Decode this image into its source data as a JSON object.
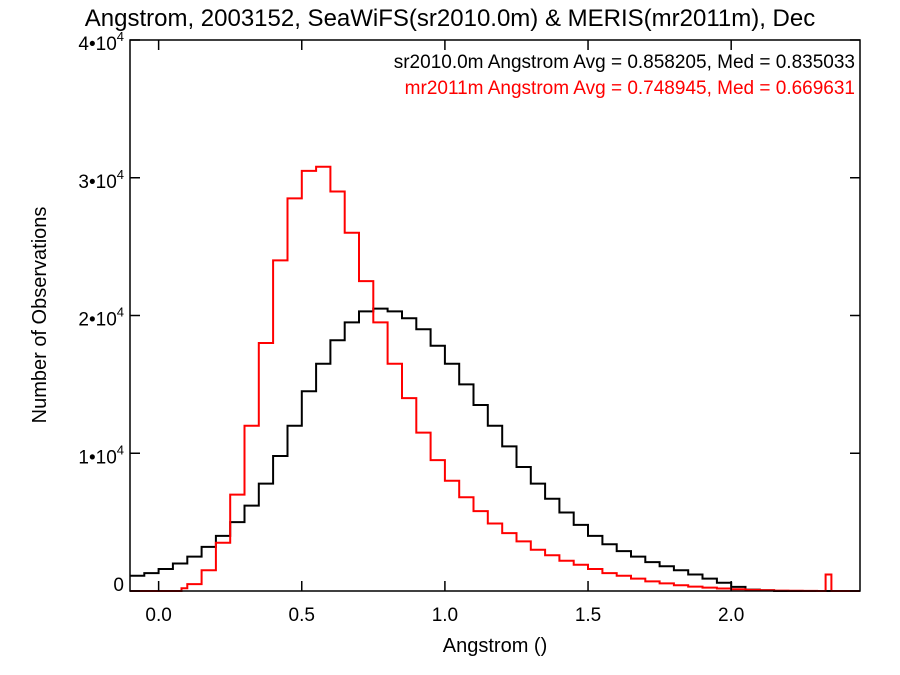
{
  "chart_data": {
    "type": "line",
    "title": "Angstrom, 2003152, SeaWiFS(sr2010.0m) & MERIS(mr2011m), Dec",
    "xlabel": "Angstrom ()",
    "ylabel": "Number of Observations",
    "xlim": [
      -0.1,
      2.45
    ],
    "ylim": [
      0,
      40000
    ],
    "xticks": [
      {
        "value": 0.0,
        "label": "0.0"
      },
      {
        "value": 0.5,
        "label": "0.5"
      },
      {
        "value": 1.0,
        "label": "1.0"
      },
      {
        "value": 1.5,
        "label": "1.5"
      },
      {
        "value": 2.0,
        "label": "2.0"
      }
    ],
    "yticks": [
      {
        "value": 0,
        "label": "0",
        "sup": ""
      },
      {
        "value": 10000,
        "label": "1•10",
        "sup": "4"
      },
      {
        "value": 20000,
        "label": "2•10",
        "sup": "4"
      },
      {
        "value": 30000,
        "label": "3•10",
        "sup": "4"
      },
      {
        "value": 40000,
        "label": "4•10",
        "sup": "4"
      }
    ],
    "grid": false,
    "legend_position": "top-right",
    "series": [
      {
        "name": "sr2010.0m Angstrom Avg = 0.858205, Med = 0.835033",
        "color": "#000000",
        "x": [
          -0.1,
          -0.05,
          0.0,
          0.05,
          0.1,
          0.15,
          0.2,
          0.25,
          0.3,
          0.35,
          0.4,
          0.45,
          0.5,
          0.55,
          0.6,
          0.65,
          0.7,
          0.75,
          0.8,
          0.85,
          0.9,
          0.95,
          1.0,
          1.05,
          1.1,
          1.15,
          1.2,
          1.25,
          1.3,
          1.35,
          1.4,
          1.45,
          1.5,
          1.55,
          1.6,
          1.65,
          1.7,
          1.75,
          1.8,
          1.85,
          1.9,
          1.95,
          2.0,
          2.05,
          2.1,
          2.15,
          2.2,
          2.25,
          2.3,
          2.35
        ],
        "y": [
          1100,
          1300,
          1600,
          2000,
          2500,
          3200,
          4000,
          5000,
          6200,
          7800,
          9800,
          12000,
          14500,
          16500,
          18200,
          19500,
          20300,
          20500,
          20300,
          19800,
          19000,
          17800,
          16500,
          15000,
          13500,
          12000,
          10500,
          9000,
          7800,
          6700,
          5700,
          4800,
          4000,
          3400,
          2900,
          2500,
          2100,
          1800,
          1500,
          1200,
          900,
          600,
          300,
          100,
          50,
          0,
          0,
          0,
          0,
          0
        ]
      },
      {
        "name": "mr2011m Angstrom Avg = 0.748945, Med = 0.669631",
        "color": "#ff0000",
        "x": [
          -0.1,
          0.0,
          0.05,
          0.08,
          0.1,
          0.15,
          0.2,
          0.25,
          0.3,
          0.35,
          0.4,
          0.45,
          0.5,
          0.55,
          0.6,
          0.65,
          0.7,
          0.75,
          0.8,
          0.85,
          0.9,
          0.95,
          1.0,
          1.05,
          1.1,
          1.15,
          1.2,
          1.25,
          1.3,
          1.35,
          1.4,
          1.45,
          1.5,
          1.55,
          1.6,
          1.65,
          1.7,
          1.75,
          1.8,
          1.85,
          1.9,
          1.95,
          2.0,
          2.05,
          2.1,
          2.15,
          2.2,
          2.25,
          2.3,
          2.33,
          2.35,
          2.4,
          2.45
        ],
        "y": [
          0,
          0,
          0,
          200,
          500,
          1500,
          3500,
          7000,
          12000,
          18000,
          24000,
          28500,
          30500,
          30800,
          29000,
          26000,
          22500,
          19500,
          16500,
          14000,
          11500,
          9500,
          8000,
          6800,
          5800,
          4900,
          4200,
          3600,
          3000,
          2600,
          2200,
          1900,
          1600,
          1300,
          1100,
          900,
          700,
          550,
          420,
          320,
          250,
          180,
          120,
          80,
          50,
          30,
          20,
          10,
          0,
          1200,
          0,
          0,
          0
        ]
      }
    ]
  }
}
